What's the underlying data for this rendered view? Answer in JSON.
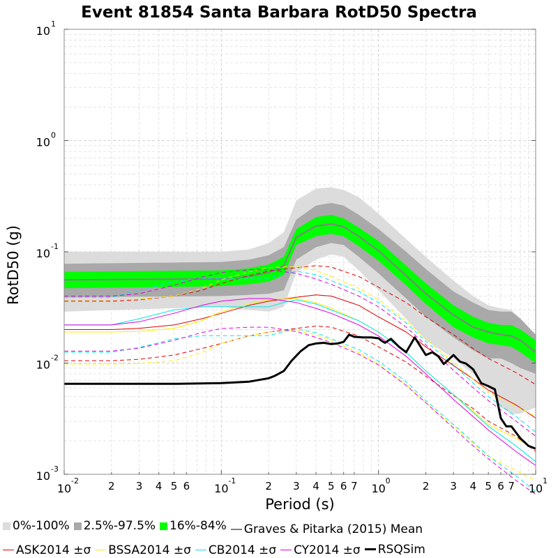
{
  "colors": {
    "band_0_100": "#dcdcdc",
    "band_2_97": "#a9a9a9",
    "band_16_84": "#00ff00",
    "gp_mean": "#808080",
    "ask": "#e00000",
    "bssa": "#ffee00",
    "cb": "#00e5ee",
    "cy": "#dd00dd",
    "rsqsim": "#000000"
  },
  "chart_data": {
    "type": "line",
    "title": "Event 81854 Santa Barbara RotD50 Spectra",
    "xlabel": "Period (s)",
    "ylabel": "RotD50 (g)",
    "xscale": "log",
    "yscale": "log",
    "xlim": [
      0.01,
      10
    ],
    "ylim": [
      0.001,
      10
    ],
    "grid": true,
    "x_major_ticks": [
      {
        "value": 0.01,
        "base": "10",
        "exp": "-2"
      },
      {
        "value": 0.1,
        "base": "10",
        "exp": "-1"
      },
      {
        "value": 1,
        "base": "10",
        "exp": "0"
      },
      {
        "value": 10,
        "base": "10",
        "exp": "1"
      }
    ],
    "x_minor_ticks": [
      {
        "value": 0.02,
        "label": "2"
      },
      {
        "value": 0.03,
        "label": "3"
      },
      {
        "value": 0.04,
        "label": "4"
      },
      {
        "value": 0.05,
        "label": "5"
      },
      {
        "value": 0.06,
        "label": "6"
      },
      {
        "value": 0.2,
        "label": "2"
      },
      {
        "value": 0.3,
        "label": "3"
      },
      {
        "value": 0.4,
        "label": "4"
      },
      {
        "value": 0.5,
        "label": "5"
      },
      {
        "value": 0.6,
        "label": "6"
      },
      {
        "value": 0.7,
        "label": "7"
      },
      {
        "value": 2,
        "label": "2"
      },
      {
        "value": 3,
        "label": "3"
      },
      {
        "value": 4,
        "label": "4"
      },
      {
        "value": 5,
        "label": "5"
      },
      {
        "value": 6,
        "label": "6"
      },
      {
        "value": 7,
        "label": "7"
      }
    ],
    "y_major_ticks": [
      {
        "value": 0.001,
        "base": "10",
        "exp": "-3"
      },
      {
        "value": 0.01,
        "base": "10",
        "exp": "-2"
      },
      {
        "value": 0.1,
        "base": "10",
        "exp": "-1"
      },
      {
        "value": 1,
        "base": "10",
        "exp": "0"
      },
      {
        "value": 10,
        "base": "10",
        "exp": "1"
      }
    ],
    "bands": [
      {
        "name": "0%-100%",
        "color_key": "band_0_100",
        "x": [
          0.01,
          0.1,
          0.15,
          0.2,
          0.25,
          0.3,
          0.4,
          0.5,
          0.6,
          0.75,
          1,
          1.5,
          2,
          3,
          4,
          5,
          6,
          7,
          8,
          10
        ],
        "upper": [
          0.1,
          0.1,
          0.105,
          0.12,
          0.15,
          0.29,
          0.37,
          0.38,
          0.36,
          0.31,
          0.22,
          0.13,
          0.09,
          0.055,
          0.04,
          0.033,
          0.031,
          0.03,
          0.025,
          0.018
        ],
        "lower": [
          0.029,
          0.032,
          0.03,
          0.029,
          0.032,
          0.065,
          0.085,
          0.095,
          0.09,
          0.068,
          0.045,
          0.025,
          0.016,
          0.011,
          0.008,
          0.006,
          0.004,
          0.0035,
          0.0035,
          0.004
        ]
      },
      {
        "name": "2.5%-97.5%",
        "color_key": "band_2_97",
        "x": [
          0.01,
          0.1,
          0.15,
          0.2,
          0.25,
          0.3,
          0.4,
          0.5,
          0.6,
          0.75,
          1,
          1.5,
          2,
          3,
          4,
          5,
          6,
          7,
          8,
          10
        ],
        "upper": [
          0.078,
          0.081,
          0.085,
          0.093,
          0.11,
          0.195,
          0.26,
          0.275,
          0.26,
          0.215,
          0.16,
          0.1,
          0.07,
          0.044,
          0.035,
          0.03,
          0.029,
          0.029,
          0.025,
          0.018
        ],
        "lower": [
          0.039,
          0.04,
          0.041,
          0.042,
          0.045,
          0.085,
          0.11,
          0.12,
          0.115,
          0.09,
          0.064,
          0.038,
          0.026,
          0.017,
          0.013,
          0.011,
          0.011,
          0.01,
          0.009,
          0.008
        ]
      },
      {
        "name": "16%-84%",
        "color_key": "band_16_84",
        "x": [
          0.01,
          0.1,
          0.15,
          0.2,
          0.25,
          0.3,
          0.4,
          0.5,
          0.6,
          0.75,
          1,
          1.5,
          2,
          3,
          4,
          5,
          6,
          7,
          8,
          10
        ],
        "upper": [
          0.066,
          0.068,
          0.071,
          0.077,
          0.09,
          0.16,
          0.205,
          0.215,
          0.2,
          0.165,
          0.125,
          0.075,
          0.052,
          0.033,
          0.026,
          0.023,
          0.022,
          0.022,
          0.02,
          0.016
        ],
        "lower": [
          0.047,
          0.049,
          0.051,
          0.054,
          0.062,
          0.115,
          0.138,
          0.145,
          0.138,
          0.112,
          0.083,
          0.05,
          0.034,
          0.021,
          0.017,
          0.015,
          0.0145,
          0.014,
          0.0125,
          0.01
        ]
      }
    ],
    "series": [
      {
        "name": "Graves & Pitarka (2015) Mean",
        "legend_label": "Graves & Pitarka (2015) Mean",
        "color_key": "gp_mean",
        "width": 2,
        "dash": false,
        "x": [
          0.01,
          0.1,
          0.15,
          0.2,
          0.25,
          0.3,
          0.4,
          0.5,
          0.6,
          0.75,
          1,
          1.5,
          2,
          3,
          4,
          5,
          6,
          7,
          8,
          10
        ],
        "y": [
          0.056,
          0.057,
          0.06,
          0.065,
          0.075,
          0.135,
          0.17,
          0.178,
          0.168,
          0.137,
          0.102,
          0.061,
          0.042,
          0.027,
          0.021,
          0.019,
          0.018,
          0.0175,
          0.016,
          0.0125
        ]
      },
      {
        "name": "ASK2014",
        "legend_label": "ASK2014 ±σ",
        "color_key": "ask",
        "width": 1,
        "dash": false,
        "x": [
          0.01,
          0.02,
          0.03,
          0.05,
          0.075,
          0.1,
          0.15,
          0.2,
          0.3,
          0.4,
          0.5,
          0.75,
          1,
          1.5,
          2,
          3,
          4,
          5,
          7.5,
          10
        ],
        "y": [
          0.02,
          0.02,
          0.0205,
          0.022,
          0.025,
          0.028,
          0.033,
          0.036,
          0.039,
          0.041,
          0.04,
          0.033,
          0.026,
          0.019,
          0.014,
          0.0095,
          0.0072,
          0.0057,
          0.0042,
          0.0032
        ]
      },
      {
        "name": "ASK2014 +σ",
        "color_key": "ask",
        "width": 1,
        "dash": true,
        "x": [
          0.01,
          0.02,
          0.03,
          0.05,
          0.075,
          0.1,
          0.15,
          0.2,
          0.3,
          0.4,
          0.5,
          0.75,
          1,
          1.5,
          2,
          3,
          4,
          5,
          7.5,
          10
        ],
        "y": [
          0.036,
          0.036,
          0.037,
          0.04,
          0.045,
          0.052,
          0.061,
          0.067,
          0.072,
          0.075,
          0.073,
          0.06,
          0.048,
          0.035,
          0.026,
          0.018,
          0.0135,
          0.011,
          0.0082,
          0.0064
        ]
      },
      {
        "name": "ASK2014 -σ",
        "color_key": "ask",
        "width": 1,
        "dash": true,
        "x": [
          0.01,
          0.02,
          0.03,
          0.05,
          0.075,
          0.1,
          0.15,
          0.2,
          0.3,
          0.4,
          0.5,
          0.75,
          1,
          1.5,
          2,
          3,
          4,
          5,
          7.5,
          10
        ],
        "y": [
          0.0105,
          0.0105,
          0.0108,
          0.0118,
          0.0135,
          0.015,
          0.0175,
          0.019,
          0.0205,
          0.0215,
          0.021,
          0.0175,
          0.014,
          0.0102,
          0.0076,
          0.0051,
          0.0039,
          0.003,
          0.0022,
          0.0016
        ]
      },
      {
        "name": "BSSA2014",
        "legend_label": "BSSA2014 ±σ",
        "color_key": "bssa",
        "width": 1,
        "dash": false,
        "x": [
          0.01,
          0.02,
          0.03,
          0.05,
          0.075,
          0.1,
          0.15,
          0.2,
          0.3,
          0.4,
          0.5,
          0.75,
          1,
          1.5,
          2,
          3,
          4,
          5,
          7.5,
          10
        ],
        "y": [
          0.019,
          0.019,
          0.0192,
          0.0205,
          0.024,
          0.029,
          0.034,
          0.037,
          0.038,
          0.035,
          0.031,
          0.024,
          0.019,
          0.0125,
          0.0085,
          0.0052,
          0.0037,
          0.0028,
          0.0021,
          0.0017
        ]
      },
      {
        "name": "BSSA2014 +σ",
        "color_key": "bssa",
        "width": 1,
        "dash": true,
        "x": [
          0.01,
          0.02,
          0.03,
          0.05,
          0.075,
          0.1,
          0.15,
          0.2,
          0.3,
          0.4,
          0.5,
          0.75,
          1,
          1.5,
          2,
          3,
          4,
          5,
          7.5,
          10
        ],
        "y": [
          0.037,
          0.037,
          0.0375,
          0.04,
          0.047,
          0.056,
          0.066,
          0.072,
          0.074,
          0.068,
          0.06,
          0.047,
          0.037,
          0.024,
          0.0165,
          0.0101,
          0.0072,
          0.0054,
          0.0041,
          0.0033
        ]
      },
      {
        "name": "BSSA2014 -σ",
        "color_key": "bssa",
        "width": 1,
        "dash": true,
        "x": [
          0.01,
          0.02,
          0.03,
          0.05,
          0.075,
          0.1,
          0.15,
          0.2,
          0.3,
          0.4,
          0.5,
          0.75,
          1,
          1.5,
          2,
          3,
          4,
          5,
          7.5,
          10
        ],
        "y": [
          0.0098,
          0.0098,
          0.0099,
          0.0105,
          0.0124,
          0.015,
          0.0175,
          0.019,
          0.0196,
          0.018,
          0.016,
          0.0124,
          0.0098,
          0.0064,
          0.0044,
          0.0027,
          0.0019,
          0.00145,
          0.00108,
          0.00088
        ]
      },
      {
        "name": "CB2014",
        "legend_label": "CB2014 ±σ",
        "color_key": "cb",
        "width": 1,
        "dash": false,
        "x": [
          0.01,
          0.02,
          0.03,
          0.05,
          0.075,
          0.1,
          0.15,
          0.2,
          0.25,
          0.3,
          0.4,
          0.5,
          0.75,
          1,
          1.5,
          2,
          3,
          4,
          5,
          7.5,
          10
        ],
        "y": [
          0.022,
          0.022,
          0.025,
          0.03,
          0.032,
          0.032,
          0.032,
          0.032,
          0.035,
          0.037,
          0.034,
          0.03,
          0.024,
          0.019,
          0.0125,
          0.0085,
          0.0052,
          0.0036,
          0.0027,
          0.0018,
          0.0013
        ]
      },
      {
        "name": "CB2014 +σ",
        "color_key": "cb",
        "width": 1,
        "dash": true,
        "x": [
          0.01,
          0.02,
          0.03,
          0.05,
          0.075,
          0.1,
          0.15,
          0.2,
          0.25,
          0.3,
          0.4,
          0.5,
          0.75,
          1,
          1.5,
          2,
          3,
          4,
          5,
          7.5,
          10
        ],
        "y": [
          0.039,
          0.039,
          0.045,
          0.054,
          0.058,
          0.058,
          0.058,
          0.058,
          0.063,
          0.067,
          0.062,
          0.055,
          0.044,
          0.035,
          0.023,
          0.0157,
          0.0096,
          0.0066,
          0.005,
          0.0033,
          0.0024
        ]
      },
      {
        "name": "CB2014 -σ",
        "color_key": "cb",
        "width": 1,
        "dash": true,
        "x": [
          0.01,
          0.02,
          0.03,
          0.05,
          0.075,
          0.1,
          0.15,
          0.2,
          0.25,
          0.3,
          0.4,
          0.5,
          0.75,
          1,
          1.5,
          2,
          3,
          4,
          5,
          7.5,
          10
        ],
        "y": [
          0.0125,
          0.0125,
          0.0138,
          0.0165,
          0.0176,
          0.0176,
          0.0176,
          0.0176,
          0.0192,
          0.0203,
          0.0187,
          0.0165,
          0.0132,
          0.0104,
          0.0068,
          0.0046,
          0.0028,
          0.00195,
          0.00146,
          0.00097,
          0.0007
        ]
      },
      {
        "name": "CY2014",
        "legend_label": "CY2014 ±σ",
        "color_key": "cy",
        "width": 1,
        "dash": false,
        "x": [
          0.01,
          0.02,
          0.03,
          0.05,
          0.075,
          0.1,
          0.15,
          0.2,
          0.3,
          0.4,
          0.5,
          0.75,
          1,
          1.5,
          2,
          3,
          4,
          5,
          7.5,
          10
        ],
        "y": [
          0.022,
          0.022,
          0.0235,
          0.028,
          0.033,
          0.036,
          0.038,
          0.038,
          0.035,
          0.031,
          0.028,
          0.022,
          0.0175,
          0.0115,
          0.008,
          0.0047,
          0.0033,
          0.0025,
          0.0016,
          0.0012
        ]
      },
      {
        "name": "CY2014 +σ",
        "color_key": "cy",
        "width": 1,
        "dash": true,
        "x": [
          0.01,
          0.02,
          0.03,
          0.05,
          0.075,
          0.1,
          0.15,
          0.2,
          0.3,
          0.4,
          0.5,
          0.75,
          1,
          1.5,
          2,
          3,
          4,
          5,
          7.5,
          10
        ],
        "y": [
          0.04,
          0.04,
          0.042,
          0.05,
          0.059,
          0.065,
          0.069,
          0.069,
          0.064,
          0.057,
          0.051,
          0.04,
          0.032,
          0.021,
          0.0146,
          0.0086,
          0.006,
          0.0046,
          0.003,
          0.0022
        ]
      },
      {
        "name": "CY2014 -σ",
        "color_key": "cy",
        "width": 1,
        "dash": true,
        "x": [
          0.01,
          0.02,
          0.03,
          0.05,
          0.075,
          0.1,
          0.15,
          0.2,
          0.3,
          0.4,
          0.5,
          0.75,
          1,
          1.5,
          2,
          3,
          4,
          5,
          7.5,
          10
        ],
        "y": [
          0.0128,
          0.0128,
          0.0136,
          0.016,
          0.0188,
          0.0204,
          0.021,
          0.021,
          0.0192,
          0.017,
          0.0153,
          0.012,
          0.0096,
          0.0063,
          0.0044,
          0.0026,
          0.0018,
          0.00138,
          0.00088,
          0.00066
        ]
      },
      {
        "name": "RSQSim",
        "legend_label": "RSQSim",
        "color_key": "rsqsim",
        "width": 3,
        "dash": false,
        "x": [
          0.01,
          0.05,
          0.1,
          0.15,
          0.2,
          0.22,
          0.25,
          0.28,
          0.32,
          0.36,
          0.4,
          0.45,
          0.5,
          0.55,
          0.6,
          0.65,
          0.7,
          0.8,
          0.9,
          1.0,
          1.05,
          1.1,
          1.2,
          1.35,
          1.5,
          1.7,
          2.0,
          2.2,
          2.4,
          2.6,
          3.0,
          3.3,
          3.6,
          4.0,
          4.5,
          5.0,
          5.5,
          6.0,
          6.5,
          7.0,
          8.0,
          9.0,
          10.0
        ],
        "y": [
          0.0065,
          0.0065,
          0.0066,
          0.0068,
          0.0073,
          0.0077,
          0.0085,
          0.0105,
          0.0128,
          0.0145,
          0.015,
          0.0152,
          0.0148,
          0.015,
          0.0155,
          0.018,
          0.0172,
          0.017,
          0.017,
          0.0167,
          0.0158,
          0.0152,
          0.0165,
          0.014,
          0.0125,
          0.017,
          0.0118,
          0.0125,
          0.0115,
          0.0098,
          0.0118,
          0.0103,
          0.0099,
          0.0088,
          0.0066,
          0.0062,
          0.0058,
          0.0032,
          0.0027,
          0.0027,
          0.0021,
          0.0018,
          0.0017
        ]
      }
    ]
  }
}
